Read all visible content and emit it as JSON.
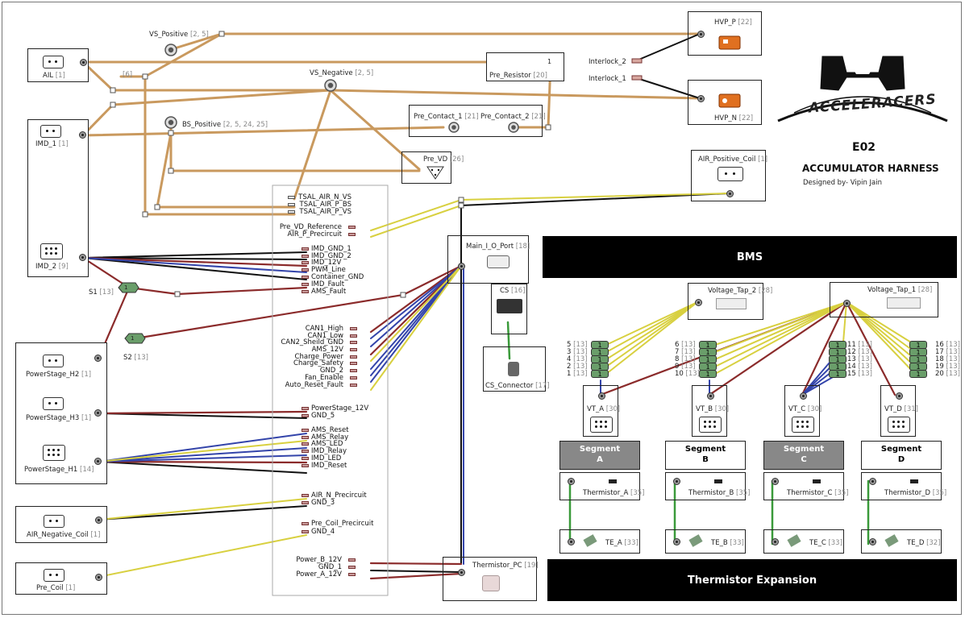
{
  "header": {
    "project": "E02",
    "title": "ACCUMULATOR HARNESS",
    "designer": "Designed by- Vipin Jain",
    "logo_text": "ACCELERACERS"
  },
  "colors": {
    "tan": "#c9995e",
    "black": "#111111",
    "red": "#8b2b2b",
    "blue": "#3344aa",
    "yellow": "#d8d040",
    "green": "#3a9a3a",
    "splice": "#6a9e6a"
  },
  "connectors": {
    "ail": {
      "name": "AIL",
      "num": "[1]"
    },
    "imd1": {
      "name": "IMD_1",
      "num": "[1]"
    },
    "imd2": {
      "name": "IMD_2",
      "num": "[9]"
    },
    "ps_h2": {
      "name": "PowerStage_H2",
      "num": "[1]"
    },
    "ps_h3": {
      "name": "PowerStage_H3",
      "num": "[1]"
    },
    "ps_h1": {
      "name": "PowerStage_H1",
      "num": "[14]"
    },
    "air_neg": {
      "name": "AIR_Negative_Coil",
      "num": "[1]"
    },
    "pre_coil": {
      "name": "Pre_Coil",
      "num": "[1]"
    },
    "pre_resistor": {
      "name": "Pre_Resistor",
      "num": "[20]"
    },
    "pre_contact_1": {
      "name": "Pre_Contact_1",
      "num": "[21]"
    },
    "pre_contact_2": {
      "name": "Pre_Contact_2",
      "num": "[21]"
    },
    "pre_vd": {
      "name": "Pre_VD",
      "num": "[26]"
    },
    "hvp_p": {
      "name": "HVP_P",
      "num": "[22]"
    },
    "hvp_n": {
      "name": "HVP_N",
      "num": "[22]"
    },
    "air_pos": {
      "name": "AIR_Positive_Coil",
      "num": "[1]"
    },
    "main_io": {
      "name": "Main_I_O_Port",
      "num": "[18]"
    },
    "cs": {
      "name": "CS",
      "num": "[16]"
    },
    "cs_conn": {
      "name": "CS_Connector",
      "num": "[17]"
    },
    "therm_pc": {
      "name": "Thermistor_PC",
      "num": "[19]"
    },
    "vtap2": {
      "name": "Voltage_Tap_2",
      "num": "[28]"
    },
    "vtap1": {
      "name": "Voltage_Tap_1",
      "num": "[28]"
    },
    "vt_a": {
      "name": "VT_A",
      "num": "[30]"
    },
    "vt_b": {
      "name": "VT_B",
      "num": "[30]"
    },
    "vt_c": {
      "name": "VT_C",
      "num": "[30]"
    },
    "vt_d": {
      "name": "VT_D",
      "num": "[31]"
    },
    "th_a": {
      "name": "Thermistor_A",
      "num": "[35]"
    },
    "th_b": {
      "name": "Thermistor_B",
      "num": "[35]"
    },
    "th_c": {
      "name": "Thermistor_C",
      "num": "[35]"
    },
    "th_d": {
      "name": "Thermistor_D",
      "num": "[35]"
    },
    "te_a": {
      "name": "TE_A",
      "num": "[33]"
    },
    "te_b": {
      "name": "TE_B",
      "num": "[33]"
    },
    "te_c": {
      "name": "TE_C",
      "num": "[33]"
    },
    "te_d": {
      "name": "TE_D",
      "num": "[32]"
    }
  },
  "nodes": {
    "vs_pos": {
      "name": "VS_Positive",
      "num": "[2, 5]"
    },
    "vs_neg": {
      "name": "VS_Negative",
      "num": "[2, 5]"
    },
    "bs_pos": {
      "name": "BS_Positive",
      "num": "[2, 5, 24, 25]"
    },
    "six": "[6]",
    "s1": {
      "name": "S1",
      "num": "[13]"
    },
    "s2": {
      "name": "S2",
      "num": "[13]"
    },
    "interlock_2": "Interlock_2",
    "interlock_1": "Interlock_1",
    "splice_one": "1"
  },
  "pins": {
    "top": [
      "TSAL_AIR_N_VS",
      "TSAL_AIR_P_BS",
      "TSAL_AIR_P_VS"
    ],
    "pre": [
      "Pre_VD_Reference",
      "AIR_P_Precircuit"
    ],
    "imd": [
      "IMD_GND_1",
      "IMD_GND_2",
      "IMD_12V",
      "PWM_Line",
      "Container_GND",
      "IMD_Fault",
      "AMS_Fault"
    ],
    "can": [
      "CAN1_High",
      "CAN1_Low",
      "CAN2_Sheild_GND",
      "AMS_12V",
      "Charge_Power",
      "Charge_Safety",
      "GND_2",
      "Fan_Enable",
      "Auto_Reset_Fault"
    ],
    "ps12": [
      "PowerStage_12V",
      "GND_5"
    ],
    "ams": [
      "AMS_Reset",
      "AMS_Relay",
      "AMS_LED",
      "IMD_Relay",
      "IMD_LED",
      "IMD_Reset"
    ],
    "airn": [
      "AIR_N_Precircuit",
      "GND_3"
    ],
    "precoil": [
      "Pre_Coil_Precircuit",
      "GND_4"
    ],
    "power": [
      "Power_B_12V",
      "GND_1",
      "Power_A_12V"
    ]
  },
  "bms": {
    "title": "BMS",
    "footer": "Thermistor Expansion",
    "segments": [
      {
        "line1": "Segment",
        "line2": "A"
      },
      {
        "line1": "Segment",
        "line2": "B"
      },
      {
        "line1": "Segment",
        "line2": "C"
      },
      {
        "line1": "Segment",
        "line2": "D"
      }
    ],
    "tap_groups": [
      [
        "5",
        "3",
        "4",
        "2",
        "1"
      ],
      [
        "6",
        "7",
        "8",
        "9",
        "10"
      ],
      [
        "11",
        "12",
        "13",
        "14",
        "15"
      ],
      [
        "16",
        "17",
        "18",
        "19",
        "20"
      ]
    ],
    "tap_num": "[13]"
  }
}
